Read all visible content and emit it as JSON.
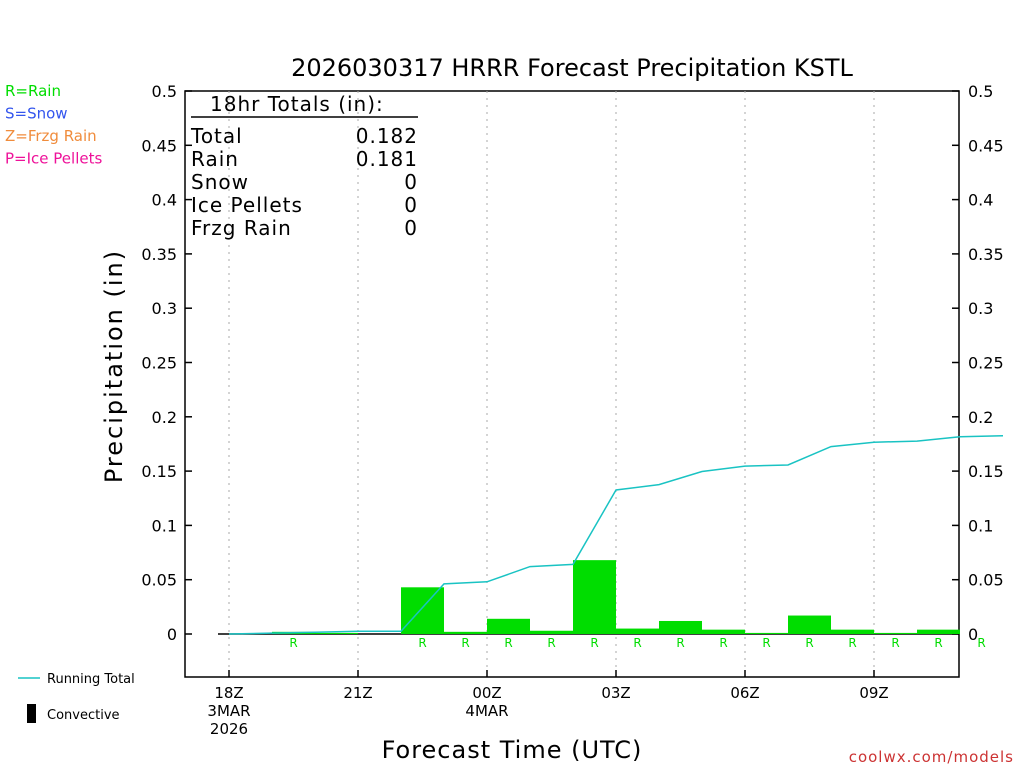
{
  "chart_data": {
    "type": "bar",
    "title": "2026030317 HRRR Forecast Precipitation KSTL",
    "xlabel": "Forecast Time (UTC)",
    "ylabel": "Precipitation (in)",
    "ylim": [
      -0.04,
      0.5
    ],
    "y_ticks": [
      "0.5",
      "0.45",
      "0.4",
      "0.35",
      "0.3",
      "0.25",
      "0.2",
      "0.15",
      "0.1",
      "0.05",
      "0"
    ],
    "x_ticks": [
      {
        "hour": 0,
        "lines": [
          "18Z",
          "3MAR",
          "2026"
        ]
      },
      {
        "hour": 3,
        "lines": [
          "21Z"
        ]
      },
      {
        "hour": 6,
        "lines": [
          "00Z",
          "4MAR"
        ]
      },
      {
        "hour": 9,
        "lines": [
          "03Z"
        ]
      },
      {
        "hour": 12,
        "lines": [
          "06Z"
        ]
      },
      {
        "hour": 15,
        "lines": [
          "09Z"
        ]
      }
    ],
    "hours": [
      1,
      2,
      3,
      4,
      5,
      6,
      7,
      8,
      9,
      10,
      11,
      12,
      13,
      14,
      15,
      16,
      17,
      18
    ],
    "series": [
      {
        "name": "Rain",
        "color": "#00dd00",
        "values": [
          0,
          0.002,
          0.001,
          0,
          0.043,
          0.002,
          0.014,
          0.003,
          0.068,
          0.005,
          0.012,
          0.004,
          0.001,
          0.017,
          0.004,
          0.001,
          0.004,
          0
        ]
      },
      {
        "name": "Running Total",
        "color": "#19c3c3",
        "values": [
          0.0008,
          0.0016,
          0.0026,
          0.0026,
          0.0461,
          0.0481,
          0.0621,
          0.0641,
          0.1326,
          0.1376,
          0.1496,
          0.1546,
          0.1556,
          0.1726,
          0.1766,
          0.1776,
          0.1816,
          0.1826
        ]
      }
    ],
    "type_labels": [
      "",
      "R",
      "",
      "",
      "R",
      "R",
      "R",
      "R",
      "R",
      "R",
      "R",
      "R",
      "R",
      "R",
      "R",
      "R",
      "R",
      "R"
    ],
    "type_legend": [
      {
        "text": "R=Rain",
        "color": "#00dd00"
      },
      {
        "text": "S=Snow",
        "color": "#3355ee"
      },
      {
        "text": "Z=Frzg Rain",
        "color": "#f08c3c"
      },
      {
        "text": "P=Ice Pellets",
        "color": "#ee1199"
      }
    ],
    "totals": {
      "heading": "18hr Totals (in):",
      "rows": [
        {
          "label": "Total",
          "value": "0.182"
        },
        {
          "label": "Rain",
          "value": "0.181"
        },
        {
          "label": "Snow",
          "value": "0"
        },
        {
          "label": "Ice Pellets",
          "value": "0"
        },
        {
          "label": "Frzg Rain",
          "value": "0"
        }
      ]
    },
    "legend": {
      "running_total": "Running Total",
      "convective": "Convective",
      "running_total_color": "#19c3c3",
      "convective_color": "#000000"
    },
    "credit": "coolwx.com/models",
    "credit_color": "#cc3333",
    "grid": "vertical-dotted"
  }
}
